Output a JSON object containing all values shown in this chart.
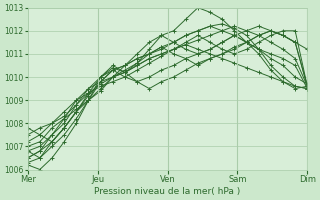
{
  "title": "Pression niveau de la mer( hPa )",
  "ylim": [
    1006,
    1013
  ],
  "yticks": [
    1006,
    1007,
    1008,
    1009,
    1010,
    1011,
    1012,
    1013
  ],
  "xtick_labels": [
    "Mer",
    "Jeu",
    "Ven",
    "Sam",
    "Dim"
  ],
  "background_color": "#cce8cc",
  "plot_bg_color": "#d8eed8",
  "grid_color": "#aaccaa",
  "line_color": "#2d6a2d",
  "marker_color": "#2d6a2d",
  "n_days": 5,
  "series": [
    [
      1006.8,
      1006.5,
      1007.2,
      1007.8,
      1008.5,
      1009.2,
      1009.8,
      1010.3,
      1010.5,
      1010.8,
      1011.0,
      1011.2,
      1011.5,
      1011.8,
      1012.0,
      1012.2,
      1012.3,
      1012.1,
      1011.8,
      1011.2,
      1010.5,
      1010.0,
      1009.6,
      1009.5
    ],
    [
      1006.5,
      1006.8,
      1007.5,
      1008.0,
      1008.8,
      1009.5,
      1010.0,
      1010.4,
      1010.2,
      1010.6,
      1011.2,
      1011.8,
      1012.0,
      1012.5,
      1013.0,
      1012.8,
      1012.5,
      1012.0,
      1011.5,
      1011.0,
      1010.3,
      1009.8,
      1009.5,
      1009.6
    ],
    [
      1007.0,
      1007.2,
      1007.8,
      1008.2,
      1008.6,
      1009.0,
      1009.4,
      1010.0,
      1010.5,
      1011.0,
      1011.5,
      1011.8,
      1011.5,
      1011.2,
      1011.0,
      1011.2,
      1011.5,
      1011.8,
      1011.5,
      1011.2,
      1010.8,
      1010.5,
      1010.0,
      1009.7
    ],
    [
      1006.2,
      1006.0,
      1006.5,
      1007.2,
      1008.0,
      1009.0,
      1010.0,
      1010.3,
      1010.0,
      1009.8,
      1010.0,
      1010.3,
      1010.5,
      1010.8,
      1011.0,
      1011.2,
      1011.5,
      1011.8,
      1012.0,
      1012.2,
      1012.0,
      1011.8,
      1011.5,
      1011.2
    ],
    [
      1007.2,
      1007.5,
      1008.0,
      1008.5,
      1009.0,
      1009.3,
      1009.6,
      1009.8,
      1010.0,
      1010.3,
      1010.6,
      1010.9,
      1011.2,
      1011.4,
      1011.6,
      1011.8,
      1012.0,
      1012.2,
      1012.0,
      1011.8,
      1011.5,
      1011.2,
      1010.8,
      1009.6
    ],
    [
      1007.5,
      1007.8,
      1008.0,
      1008.3,
      1008.8,
      1009.3,
      1009.7,
      1010.0,
      1010.2,
      1010.5,
      1010.8,
      1011.0,
      1011.2,
      1011.5,
      1011.8,
      1011.5,
      1011.2,
      1011.0,
      1011.2,
      1011.5,
      1011.8,
      1012.0,
      1012.0,
      1009.6
    ],
    [
      1006.8,
      1007.0,
      1007.5,
      1008.2,
      1009.0,
      1009.5,
      1009.8,
      1010.0,
      1010.2,
      1010.5,
      1010.8,
      1011.0,
      1011.2,
      1011.4,
      1011.2,
      1011.0,
      1010.8,
      1010.6,
      1010.4,
      1010.2,
      1010.0,
      1009.8,
      1009.6,
      1009.5
    ],
    [
      1006.5,
      1006.8,
      1007.2,
      1007.8,
      1008.5,
      1009.0,
      1009.5,
      1010.0,
      1010.3,
      1010.6,
      1011.0,
      1011.3,
      1011.0,
      1010.8,
      1010.5,
      1010.8,
      1011.0,
      1011.3,
      1011.5,
      1011.8,
      1012.0,
      1011.8,
      1011.5,
      1009.6
    ],
    [
      1007.8,
      1007.5,
      1007.2,
      1007.8,
      1008.5,
      1009.3,
      1010.0,
      1010.5,
      1010.2,
      1009.8,
      1009.5,
      1009.8,
      1010.0,
      1010.3,
      1010.6,
      1010.8,
      1011.0,
      1011.2,
      1011.5,
      1011.8,
      1012.0,
      1011.8,
      1011.5,
      1009.6
    ],
    [
      1006.3,
      1006.5,
      1007.0,
      1007.5,
      1008.2,
      1009.0,
      1009.8,
      1010.3,
      1010.5,
      1010.8,
      1011.0,
      1011.3,
      1011.5,
      1011.8,
      1012.0,
      1012.2,
      1012.0,
      1011.8,
      1011.5,
      1011.2,
      1011.0,
      1010.8,
      1010.5,
      1009.5
    ]
  ]
}
